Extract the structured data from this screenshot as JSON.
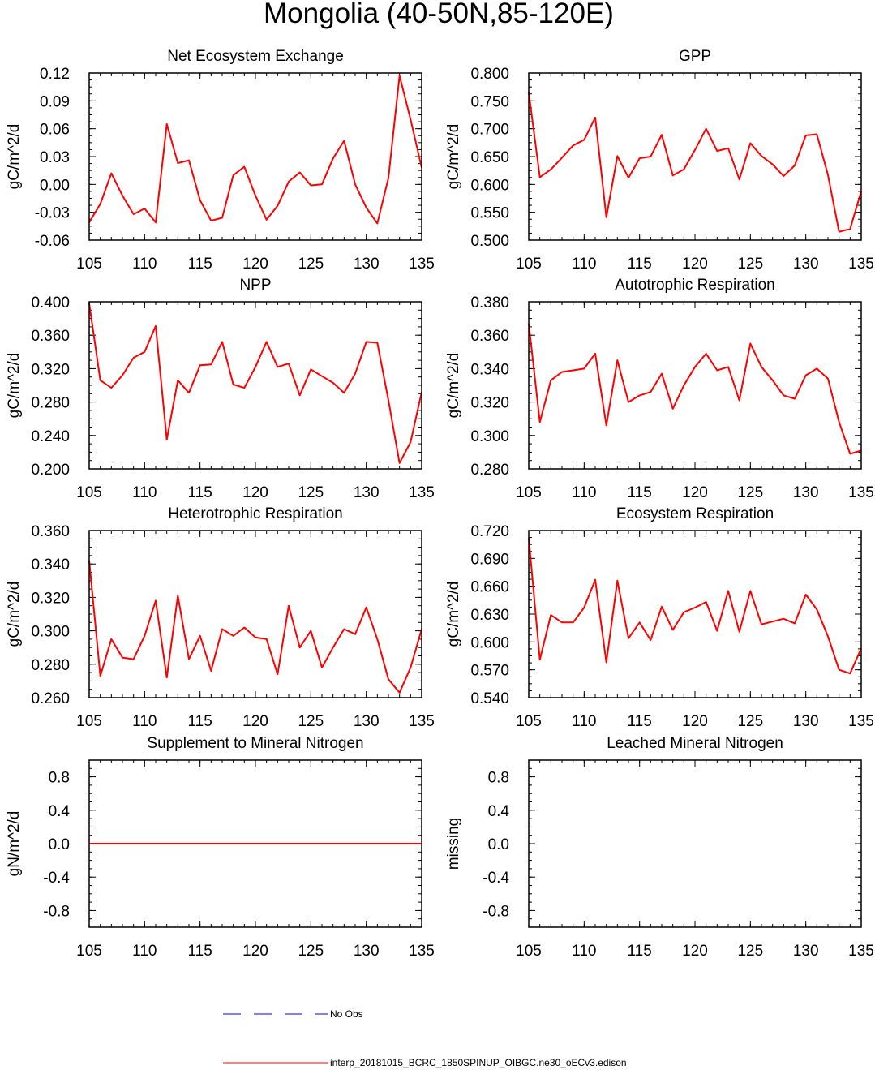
{
  "page_title": "Mongolia (40-50N,85-120E)",
  "colors": {
    "model_line": "#ff0000",
    "obs_line": "#0000ff",
    "axis": "#000000"
  },
  "legend": {
    "obs_label": "No Obs",
    "model_label": "interp_20181015_BCRC_1850SPINUP_OIBGC.ne30_oECv3.edison"
  },
  "chart_data": [
    {
      "type": "line",
      "title": "Net Ecosystem Exchange",
      "ylabel": "gC/m^2/d",
      "xlim": [
        105,
        135
      ],
      "ylim": [
        -0.06,
        0.12
      ],
      "yticks": [
        -0.06,
        -0.03,
        0.0,
        0.03,
        0.06,
        0.09,
        0.12
      ],
      "ytick_labels": [
        "-0.06",
        "-0.03",
        "0.00",
        "0.03",
        "0.06",
        "0.09",
        "0.12"
      ],
      "xticks": [
        105,
        110,
        115,
        120,
        125,
        130,
        135
      ],
      "series": [
        {
          "x": [
            105,
            106,
            107,
            108,
            109,
            110,
            111,
            112,
            113,
            114,
            115,
            116,
            117,
            118,
            119,
            120,
            121,
            122,
            123,
            124,
            125,
            126,
            127,
            128,
            129,
            130,
            131,
            132,
            133,
            134,
            135
          ],
          "values": [
            -0.041,
            -0.021,
            0.012,
            -0.012,
            -0.032,
            -0.026,
            -0.041,
            0.065,
            0.023,
            0.026,
            -0.017,
            -0.039,
            -0.036,
            0.01,
            0.019,
            -0.012,
            -0.038,
            -0.023,
            0.003,
            0.013,
            -0.001,
            0.0,
            0.028,
            0.047,
            0.0,
            -0.025,
            -0.042,
            0.007,
            0.117,
            0.07,
            0.018
          ]
        }
      ]
    },
    {
      "type": "line",
      "title": "GPP",
      "ylabel": "gC/m^2/d",
      "xlim": [
        105,
        135
      ],
      "ylim": [
        0.5,
        0.8
      ],
      "yticks": [
        0.5,
        0.55,
        0.6,
        0.65,
        0.7,
        0.75,
        0.8
      ],
      "ytick_labels": [
        "0.500",
        "0.550",
        "0.600",
        "0.650",
        "0.700",
        "0.750",
        "0.800"
      ],
      "xticks": [
        105,
        110,
        115,
        120,
        125,
        130,
        135
      ],
      "series": [
        {
          "x": [
            105,
            106,
            107,
            108,
            109,
            110,
            111,
            112,
            113,
            114,
            115,
            116,
            117,
            118,
            119,
            120,
            121,
            122,
            123,
            124,
            125,
            126,
            127,
            128,
            129,
            130,
            131,
            132,
            133,
            134,
            135
          ],
          "values": [
            0.765,
            0.613,
            0.627,
            0.648,
            0.67,
            0.68,
            0.72,
            0.541,
            0.651,
            0.612,
            0.647,
            0.65,
            0.689,
            0.616,
            0.627,
            0.662,
            0.7,
            0.66,
            0.665,
            0.609,
            0.674,
            0.651,
            0.636,
            0.615,
            0.634,
            0.688,
            0.69,
            0.617,
            0.515,
            0.52,
            0.588
          ]
        }
      ]
    },
    {
      "type": "line",
      "title": "NPP",
      "ylabel": "gC/m^2/d",
      "xlim": [
        105,
        135
      ],
      "ylim": [
        0.2,
        0.4
      ],
      "yticks": [
        0.2,
        0.24,
        0.28,
        0.32,
        0.36,
        0.4
      ],
      "ytick_labels": [
        "0.200",
        "0.240",
        "0.280",
        "0.320",
        "0.360",
        "0.400"
      ],
      "xticks": [
        105,
        110,
        115,
        120,
        125,
        130,
        135
      ],
      "series": [
        {
          "x": [
            105,
            106,
            107,
            108,
            109,
            110,
            111,
            112,
            113,
            114,
            115,
            116,
            117,
            118,
            119,
            120,
            121,
            122,
            123,
            124,
            125,
            126,
            127,
            128,
            129,
            130,
            131,
            132,
            133,
            134,
            135
          ],
          "values": [
            0.398,
            0.306,
            0.297,
            0.312,
            0.333,
            0.34,
            0.371,
            0.235,
            0.306,
            0.291,
            0.324,
            0.325,
            0.352,
            0.301,
            0.297,
            0.322,
            0.352,
            0.322,
            0.326,
            0.288,
            0.319,
            0.311,
            0.303,
            0.291,
            0.314,
            0.352,
            0.351,
            0.282,
            0.207,
            0.232,
            0.292
          ]
        }
      ]
    },
    {
      "type": "line",
      "title": "Autotrophic Respiration",
      "ylabel": "gC/m^2/d",
      "xlim": [
        105,
        135
      ],
      "ylim": [
        0.28,
        0.38
      ],
      "yticks": [
        0.28,
        0.3,
        0.32,
        0.34,
        0.36,
        0.38
      ],
      "ytick_labels": [
        "0.280",
        "0.300",
        "0.320",
        "0.340",
        "0.360",
        "0.380"
      ],
      "xticks": [
        105,
        110,
        115,
        120,
        125,
        130,
        135
      ],
      "series": [
        {
          "x": [
            105,
            106,
            107,
            108,
            109,
            110,
            111,
            112,
            113,
            114,
            115,
            116,
            117,
            118,
            119,
            120,
            121,
            122,
            123,
            124,
            125,
            126,
            127,
            128,
            129,
            130,
            131,
            132,
            133,
            134,
            135
          ],
          "values": [
            0.367,
            0.308,
            0.333,
            0.338,
            0.339,
            0.34,
            0.349,
            0.306,
            0.345,
            0.32,
            0.324,
            0.326,
            0.337,
            0.316,
            0.33,
            0.341,
            0.349,
            0.339,
            0.341,
            0.321,
            0.355,
            0.341,
            0.333,
            0.324,
            0.322,
            0.336,
            0.34,
            0.334,
            0.308,
            0.289,
            0.291
          ]
        }
      ]
    },
    {
      "type": "line",
      "title": "Heterotrophic Respiration",
      "ylabel": "gC/m^2/d",
      "xlim": [
        105,
        135
      ],
      "ylim": [
        0.26,
        0.36
      ],
      "yticks": [
        0.26,
        0.28,
        0.3,
        0.32,
        0.34,
        0.36
      ],
      "ytick_labels": [
        "0.260",
        "0.280",
        "0.300",
        "0.320",
        "0.340",
        "0.360"
      ],
      "xticks": [
        105,
        110,
        115,
        120,
        125,
        130,
        135
      ],
      "series": [
        {
          "x": [
            105,
            106,
            107,
            108,
            109,
            110,
            111,
            112,
            113,
            114,
            115,
            116,
            117,
            118,
            119,
            120,
            121,
            122,
            123,
            124,
            125,
            126,
            127,
            128,
            129,
            130,
            131,
            132,
            133,
            134,
            135
          ],
          "values": [
            0.342,
            0.273,
            0.295,
            0.284,
            0.283,
            0.297,
            0.318,
            0.272,
            0.321,
            0.283,
            0.297,
            0.276,
            0.301,
            0.297,
            0.302,
            0.296,
            0.295,
            0.274,
            0.315,
            0.29,
            0.3,
            0.278,
            0.29,
            0.301,
            0.298,
            0.314,
            0.295,
            0.271,
            0.263,
            0.278,
            0.301
          ]
        }
      ]
    },
    {
      "type": "line",
      "title": "Ecosystem Respiration",
      "ylabel": "gC/m^2/d",
      "xlim": [
        105,
        135
      ],
      "ylim": [
        0.54,
        0.72
      ],
      "yticks": [
        0.54,
        0.57,
        0.6,
        0.63,
        0.66,
        0.69,
        0.72
      ],
      "ytick_labels": [
        "0.540",
        "0.570",
        "0.600",
        "0.630",
        "0.660",
        "0.690",
        "0.720"
      ],
      "xticks": [
        105,
        110,
        115,
        120,
        125,
        130,
        135
      ],
      "series": [
        {
          "x": [
            105,
            106,
            107,
            108,
            109,
            110,
            111,
            112,
            113,
            114,
            115,
            116,
            117,
            118,
            119,
            120,
            121,
            122,
            123,
            124,
            125,
            126,
            127,
            128,
            129,
            130,
            131,
            132,
            133,
            134,
            135
          ],
          "values": [
            0.712,
            0.581,
            0.629,
            0.621,
            0.621,
            0.637,
            0.667,
            0.578,
            0.666,
            0.604,
            0.621,
            0.602,
            0.638,
            0.613,
            0.632,
            0.637,
            0.643,
            0.612,
            0.655,
            0.611,
            0.655,
            0.619,
            0.622,
            0.625,
            0.62,
            0.651,
            0.635,
            0.606,
            0.57,
            0.566,
            0.593
          ]
        }
      ]
    },
    {
      "type": "line",
      "title": "Supplement to Mineral Nitrogen",
      "ylabel": "gN/m^2/d",
      "xlim": [
        105,
        135
      ],
      "ylim": [
        -1.0,
        1.0
      ],
      "yticks": [
        -0.8,
        -0.4,
        0.0,
        0.4,
        0.8
      ],
      "ytick_labels": [
        "-0.8",
        "-0.4",
        "0.0",
        "0.4",
        "0.8"
      ],
      "xticks": [
        105,
        110,
        115,
        120,
        125,
        130,
        135
      ],
      "series": [
        {
          "x": [
            105,
            135
          ],
          "values": [
            0.0,
            0.0
          ]
        }
      ]
    },
    {
      "type": "line",
      "title": "Leached Mineral Nitrogen",
      "ylabel": "missing",
      "xlim": [
        105,
        135
      ],
      "ylim": [
        -1.0,
        1.0
      ],
      "yticks": [
        -0.8,
        -0.4,
        0.0,
        0.4,
        0.8
      ],
      "ytick_labels": [
        "-0.8",
        "-0.4",
        "0.0",
        "0.4",
        "0.8"
      ],
      "xticks": [
        105,
        110,
        115,
        120,
        125,
        130,
        135
      ],
      "series": []
    }
  ]
}
